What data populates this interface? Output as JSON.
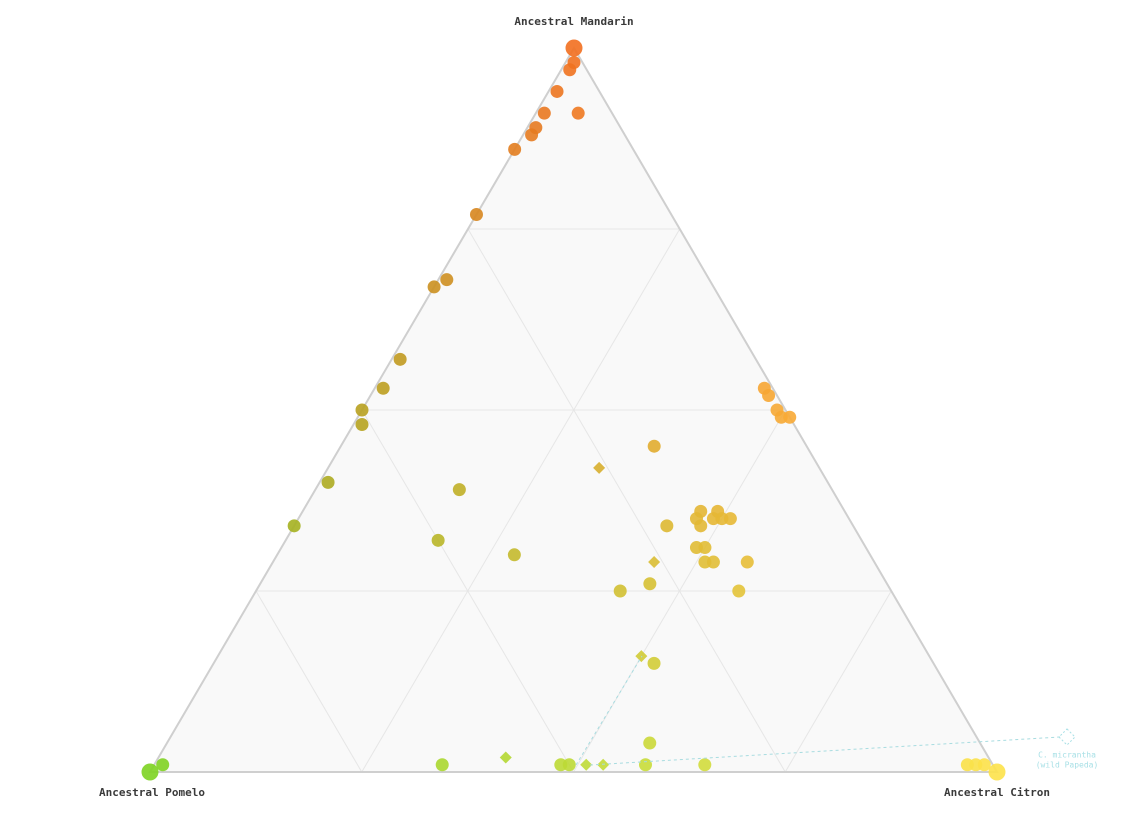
{
  "chart_data": {
    "type": "ternary",
    "axes": [
      {
        "name": "Ancestral Mandarin",
        "color": "#f26f1f"
      },
      {
        "name": "Ancestral Pomelo",
        "color": "#7dd321"
      },
      {
        "name": "Ancestral Citron",
        "color": "#fde24a"
      }
    ],
    "ticks": [
      25,
      50,
      75
    ],
    "grid": true,
    "series": [
      {
        "marker": "circle",
        "points": [
          [
            100,
            0,
            0
          ],
          [
            98,
            1,
            1
          ],
          [
            97,
            2,
            1
          ],
          [
            94,
            5,
            1
          ],
          [
            91,
            8,
            1
          ],
          [
            91,
            4,
            5
          ],
          [
            89,
            10,
            1
          ],
          [
            88,
            11,
            1
          ],
          [
            86,
            14,
            0
          ],
          [
            77,
            23,
            0
          ],
          [
            68,
            31,
            1
          ],
          [
            67,
            33,
            0
          ],
          [
            57,
            42,
            1
          ],
          [
            53,
            46,
            1
          ],
          [
            50,
            50,
            0
          ],
          [
            48,
            51,
            1
          ],
          [
            40,
            59,
            1
          ],
          [
            34,
            66,
            0
          ],
          [
            0,
            100,
            0
          ],
          [
            1,
            98,
            1
          ],
          [
            53,
            1,
            46
          ],
          [
            52,
            1,
            47
          ],
          [
            50,
            1,
            49
          ],
          [
            49,
            1,
            50
          ],
          [
            49,
            0,
            51
          ],
          [
            45,
            18,
            37
          ],
          [
            39,
            44,
            17
          ],
          [
            32,
            50,
            18
          ],
          [
            30,
            42,
            28
          ],
          [
            36,
            17,
            47
          ],
          [
            35,
            18,
            47
          ],
          [
            36,
            15,
            49
          ],
          [
            35,
            16,
            49
          ],
          [
            35,
            15,
            50
          ],
          [
            35,
            14,
            51
          ],
          [
            34,
            22,
            44
          ],
          [
            34,
            18,
            48
          ],
          [
            31,
            20,
            49
          ],
          [
            31,
            19,
            50
          ],
          [
            29,
            20,
            51
          ],
          [
            29,
            19,
            52
          ],
          [
            29,
            15,
            56
          ],
          [
            26,
            28,
            46
          ],
          [
            25,
            32,
            43
          ],
          [
            25,
            18,
            57
          ],
          [
            15,
            33,
            52
          ],
          [
            4,
            39,
            57
          ],
          [
            1,
            65,
            34
          ],
          [
            1,
            50,
            49
          ],
          [
            1,
            51,
            48
          ],
          [
            1,
            41,
            58
          ],
          [
            1,
            34,
            65
          ],
          [
            0,
            0,
            100
          ],
          [
            1,
            3,
            96
          ],
          [
            1,
            2,
            97
          ],
          [
            1,
            1,
            98
          ]
        ]
      },
      {
        "marker": "diamond",
        "points": [
          [
            42,
            26,
            32
          ],
          [
            29,
            26,
            45
          ],
          [
            16,
            34,
            50
          ],
          [
            2,
            57,
            41
          ],
          [
            1,
            48,
            51
          ],
          [
            1,
            46,
            53
          ]
        ]
      }
    ],
    "annotation": {
      "text": "C. micrantha",
      "subtext": "(wild Papeda)"
    }
  }
}
